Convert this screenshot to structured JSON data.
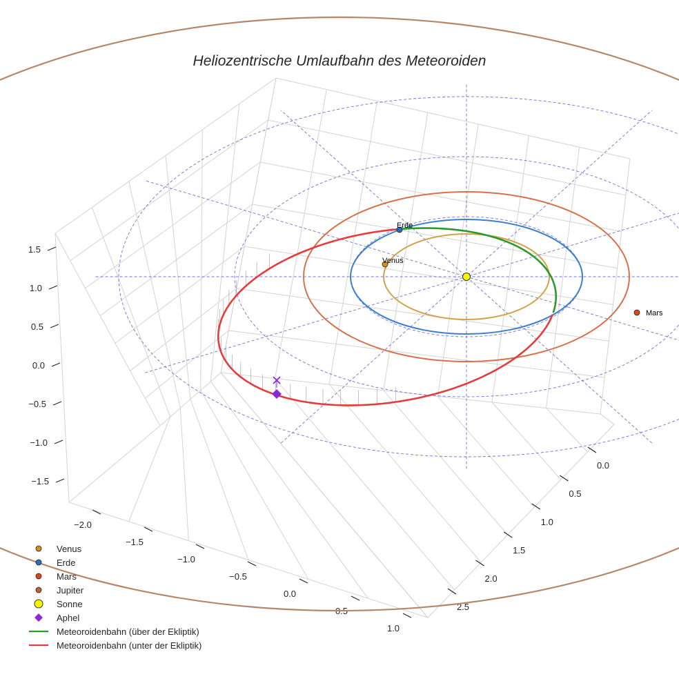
{
  "chart_data": {
    "type": "3d-line",
    "title": "Heliozentrische Umlaufbahn des Meteoroiden",
    "axes": {
      "x": {
        "ticks": [
          -2.0,
          -1.5,
          -1.0,
          -0.5,
          0.0,
          0.5,
          1.0
        ],
        "labels": [
          "−2.0",
          "−1.5",
          "−1.0",
          "−0.5",
          "0.0",
          "0.5",
          "1.0"
        ]
      },
      "y": {
        "ticks": [
          0.0,
          0.5,
          1.0,
          1.5,
          2.0,
          2.5
        ],
        "labels": [
          "0.0",
          "0.5",
          "1.0",
          "1.5",
          "2.0",
          "2.5"
        ]
      },
      "z": {
        "ticks": [
          -1.5,
          -1.0,
          -0.5,
          0.0,
          0.5,
          1.0,
          1.5
        ],
        "labels": [
          "−1.5",
          "−1.0",
          "−0.5",
          "0.0",
          "0.5",
          "1.0",
          "1.5"
        ]
      }
    },
    "planet_orbits": [
      {
        "name": "Venus",
        "a_au": 0.72,
        "color": "#d4a04a"
      },
      {
        "name": "Erde",
        "a_au": 1.0,
        "color": "#3a7fcf"
      },
      {
        "name": "Mars",
        "a_au": 1.52,
        "color": "#d8704a"
      },
      {
        "name": "Jupiter",
        "a_au": 5.2,
        "color": "#b5876a"
      }
    ],
    "planet_positions": [
      {
        "name": "Venus",
        "label": "Venus",
        "color": "#d98a1e",
        "angle_deg": 120
      },
      {
        "name": "Erde",
        "label": "Erde",
        "color": "#2a6fb5",
        "angle_deg": 94
      },
      {
        "name": "Mars",
        "label": "Mars",
        "color": "#d9481c",
        "angle_deg": -15
      }
    ],
    "sun": {
      "name": "Sonne",
      "color": "#f5f500"
    },
    "ecliptic_grid": {
      "rings_au": [
        1,
        2,
        3
      ],
      "spokes_deg": [
        0,
        30,
        60,
        90,
        120,
        150
      ],
      "color": "#5555dd"
    },
    "meteoroid_orbit": {
      "perihelion_au": 1.0,
      "aphelion_au": 2.7,
      "above_ecliptic_color": "#2a9a2a",
      "below_ecliptic_color": "#e63b3b",
      "aphelion_color": "#8a2ad6"
    },
    "legend": [
      {
        "key": "venus",
        "label": "Venus",
        "kind": "dot",
        "color": "#d98a1e"
      },
      {
        "key": "erde",
        "label": "Erde",
        "kind": "dot",
        "color": "#2a6fb5"
      },
      {
        "key": "mars",
        "label": "Mars",
        "kind": "dot",
        "color": "#d9481c"
      },
      {
        "key": "jupiter",
        "label": "Jupiter",
        "kind": "dot",
        "color": "#b5673a"
      },
      {
        "key": "sonne",
        "label": "Sonne",
        "kind": "bigdot",
        "color": "#f5f500"
      },
      {
        "key": "aphel",
        "label": "Aphel",
        "kind": "diamond",
        "color": "#8a2ad6"
      },
      {
        "key": "above",
        "label": "Meteoroidenbahn (über der Ekliptik)",
        "kind": "line",
        "color": "#2a9a2a"
      },
      {
        "key": "below",
        "label": "Meteoroidenbahn (unter der Ekliptik)",
        "kind": "line",
        "color": "#e63b3b"
      }
    ]
  }
}
